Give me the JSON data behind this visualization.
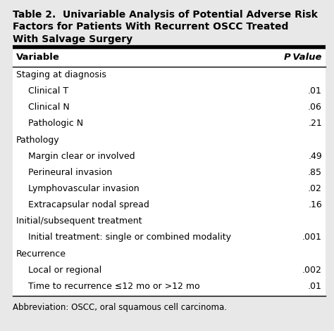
{
  "title_line1": "Table 2.  Univariable Analysis of Potential Adverse Risk",
  "title_line2": "Factors for Patients With Recurrent OSCC Treated",
  "title_line3": "With Salvage Surgery",
  "header_col1": "Variable",
  "header_col2": "P Value",
  "rows": [
    {
      "label": "Staging at diagnosis",
      "value": "",
      "indent": false
    },
    {
      "label": "Clinical T",
      "value": ".01",
      "indent": true
    },
    {
      "label": "Clinical N",
      "value": ".06",
      "indent": true
    },
    {
      "label": "Pathologic N",
      "value": ".21",
      "indent": true
    },
    {
      "label": "Pathology",
      "value": "",
      "indent": false
    },
    {
      "label": "Margin clear or involved",
      "value": ".49",
      "indent": true
    },
    {
      "label": "Perineural invasion",
      "value": ".85",
      "indent": true
    },
    {
      "label": "Lymphovascular invasion",
      "value": ".02",
      "indent": true
    },
    {
      "label": "Extracapsular nodal spread",
      "value": ".16",
      "indent": true
    },
    {
      "label": "Initial/subsequent treatment",
      "value": "",
      "indent": false
    },
    {
      "label": "Initial treatment: single or combined modality",
      "value": ".001",
      "indent": true
    },
    {
      "label": "Recurrence",
      "value": "",
      "indent": false
    },
    {
      "label": "Local or regional",
      "value": ".002",
      "indent": true
    },
    {
      "label": "Time to recurrence ≤12 mo or >12 mo",
      "value": ".01",
      "indent": true
    }
  ],
  "abbreviation": "Abbreviation: OSCC, oral squamous cell carcinoma.",
  "bg_color": "#e8e8e8",
  "white": "#ffffff",
  "title_fontsize": 10.0,
  "header_fontsize": 9.5,
  "row_fontsize": 9.0,
  "abbrev_fontsize": 8.5
}
